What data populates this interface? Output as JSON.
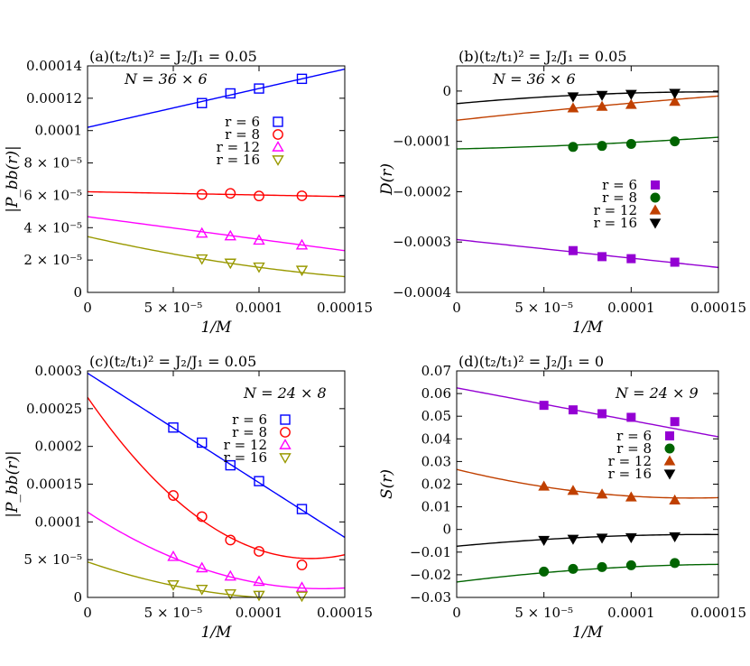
{
  "figure": {
    "panels": [
      {
        "id": "a",
        "title": "(a)(t₂/t₁)² = J₂/J₁ = 0.05",
        "n_label": "N = 36 × 6"
      },
      {
        "id": "b",
        "title": "(b)(t₂/t₁)² = J₂/J₁ = 0.05",
        "n_label": "N = 36 × 6"
      },
      {
        "id": "c",
        "title": "(c)(t₂/t₁)² = J₂/J₁ = 0.05",
        "n_label": "N = 24 × 8"
      },
      {
        "id": "d",
        "title": "(d)(t₂/t₁)² = J₂/J₁ = 0",
        "n_label": "N = 24 × 9"
      }
    ]
  },
  "chart_data": [
    {
      "type": "scatter",
      "panel": "a",
      "title": "(a)(t₂/t₁)² = J₂/J₁ = 0.05",
      "annotation": "N = 36 × 6",
      "xlabel": "1/M",
      "ylabel": "|P_bb(r)|",
      "xlim": [
        0,
        0.00015
      ],
      "ylim": [
        0,
        0.00014
      ],
      "xticks": [
        {
          "v": 0,
          "label": "0"
        },
        {
          "v": 5e-05,
          "label": "5 × 10⁻⁵"
        },
        {
          "v": 0.0001,
          "label": "0.0001"
        },
        {
          "v": 0.00015,
          "label": "0.00015"
        }
      ],
      "yticks": [
        {
          "v": 0,
          "label": "0"
        },
        {
          "v": 2e-05,
          "label": "2 × 10⁻⁵"
        },
        {
          "v": 4e-05,
          "label": "4 × 10⁻⁵"
        },
        {
          "v": 6e-05,
          "label": "6 × 10⁻⁵"
        },
        {
          "v": 8e-05,
          "label": "8 × 10⁻⁵"
        },
        {
          "v": 0.0001,
          "label": "0.0001"
        },
        {
          "v": 0.00012,
          "label": "0.00012"
        },
        {
          "v": 0.00014,
          "label": "0.00014"
        }
      ],
      "legend_position": "top-right",
      "series": [
        {
          "name": "r = 6",
          "color": "#0000ff",
          "marker": "square-open",
          "x": [
            6.67e-05,
            8.33e-05,
            0.0001,
            0.000125
          ],
          "y": [
            0.000117,
            0.000123,
            0.000126,
            0.000132
          ],
          "fit": [
            0.000102,
            0.24,
            0
          ]
        },
        {
          "name": "r = 8",
          "color": "#ff0000",
          "marker": "circle-open",
          "x": [
            6.67e-05,
            8.33e-05,
            0.0001,
            0.000125
          ],
          "y": [
            6.05e-05,
            6.12e-05,
            5.96e-05,
            5.97e-05
          ],
          "fit": [
            6.22e-05,
            -0.02,
            0
          ]
        },
        {
          "name": "r = 12",
          "color": "#ff00ff",
          "marker": "triangle-up-open",
          "x": [
            6.67e-05,
            8.33e-05,
            0.0001,
            0.000125
          ],
          "y": [
            3.65e-05,
            3.48e-05,
            3.22e-05,
            2.92e-05
          ],
          "fit": [
            4.68e-05,
            -0.14,
            0
          ]
        },
        {
          "name": "r = 16",
          "color": "#999900",
          "marker": "triangle-down-open",
          "x": [
            6.67e-05,
            8.33e-05,
            0.0001,
            0.000125
          ],
          "y": [
            2.08e-05,
            1.82e-05,
            1.58e-05,
            1.38e-05
          ],
          "fit": [
            3.45e-05,
            -0.24,
            500
          ]
        }
      ]
    },
    {
      "type": "scatter",
      "panel": "b",
      "title": "(b)(t₂/t₁)² = J₂/J₁ = 0.05",
      "annotation": "N = 36 × 6",
      "xlabel": "1/M",
      "ylabel": "D(r)",
      "xlim": [
        0,
        0.00015
      ],
      "ylim": [
        -0.0004,
        5e-05
      ],
      "xticks": [
        {
          "v": 0,
          "label": "0"
        },
        {
          "v": 5e-05,
          "label": "5 × 10⁻⁵"
        },
        {
          "v": 0.0001,
          "label": "0.0001"
        },
        {
          "v": 0.00015,
          "label": "0.00015"
        }
      ],
      "yticks": [
        {
          "v": 0,
          "label": "0"
        },
        {
          "v": -0.0001,
          "label": "−0.0001"
        },
        {
          "v": -0.0002,
          "label": "−0.0002"
        },
        {
          "v": -0.0003,
          "label": "−0.0003"
        },
        {
          "v": -0.0004,
          "label": "−0.0004"
        }
      ],
      "legend_position": "center-right",
      "series": [
        {
          "name": "r = 6",
          "color": "#9400d3",
          "marker": "square-filled",
          "x": [
            6.67e-05,
            8.33e-05,
            0.0001,
            0.000125
          ],
          "y": [
            -0.000317,
            -0.000329,
            -0.000333,
            -0.00034
          ],
          "fit": [
            -0.000295,
            -0.37,
            0
          ]
        },
        {
          "name": "r = 8",
          "color": "#006400",
          "marker": "circle-filled",
          "x": [
            6.67e-05,
            8.33e-05,
            0.0001,
            0.000125
          ],
          "y": [
            -0.000111,
            -0.000109,
            -0.000105,
            -0.0001
          ],
          "fit": [
            -0.000115,
            0.08,
            500
          ]
        },
        {
          "name": "r = 12",
          "color": "#c04000",
          "marker": "triangle-up-filled",
          "x": [
            6.67e-05,
            8.33e-05,
            0.0001,
            0.000125
          ],
          "y": [
            -3.4e-05,
            -3.1e-05,
            -2.7e-05,
            -2.1e-05
          ],
          "fit": [
            -5.8e-05,
            0.38,
            -400
          ]
        },
        {
          "name": "r = 16",
          "color": "#000000",
          "marker": "triangle-down-filled",
          "x": [
            6.67e-05,
            8.33e-05,
            0.0001,
            0.000125
          ],
          "y": [
            -1.1e-05,
            -8e-06,
            -6e-06,
            -4e-06
          ],
          "fit": [
            -2.5e-05,
            0.32,
            -1100
          ]
        }
      ]
    },
    {
      "type": "scatter",
      "panel": "c",
      "title": "(c)(t₂/t₁)² = J₂/J₁ = 0.05",
      "annotation": "N = 24 × 8",
      "xlabel": "1/M",
      "ylabel": "|P_bb(r)|",
      "xlim": [
        0,
        0.00015
      ],
      "ylim": [
        0,
        0.0003
      ],
      "xticks": [
        {
          "v": 0,
          "label": "0"
        },
        {
          "v": 5e-05,
          "label": "5 × 10⁻⁵"
        },
        {
          "v": 0.0001,
          "label": "0.0001"
        },
        {
          "v": 0.00015,
          "label": "0.00015"
        }
      ],
      "yticks": [
        {
          "v": 0,
          "label": "0"
        },
        {
          "v": 5e-05,
          "label": "5 × 10⁻⁵"
        },
        {
          "v": 0.0001,
          "label": "0.0001"
        },
        {
          "v": 0.00015,
          "label": "0.00015"
        },
        {
          "v": 0.0002,
          "label": "0.0002"
        },
        {
          "v": 0.00025,
          "label": "0.00025"
        },
        {
          "v": 0.0003,
          "label": "0.0003"
        }
      ],
      "legend_position": "top-right",
      "series": [
        {
          "name": "r = 6",
          "color": "#0000ff",
          "marker": "square-open",
          "x": [
            5e-05,
            6.67e-05,
            8.33e-05,
            0.0001,
            0.000125
          ],
          "y": [
            0.000225,
            0.000205,
            0.000175,
            0.000154,
            0.000117
          ],
          "fit": [
            0.000297,
            -1.45,
            0
          ]
        },
        {
          "name": "r = 8",
          "color": "#ff0000",
          "marker": "circle-open",
          "x": [
            5e-05,
            6.67e-05,
            8.33e-05,
            0.0001,
            0.000125
          ],
          "y": [
            0.000135,
            0.000107,
            7.6e-05,
            6.1e-05,
            4.3e-05
          ],
          "fit": [
            0.000265,
            -3.28,
            12600
          ]
        },
        {
          "name": "r = 12",
          "color": "#ff00ff",
          "marker": "triangle-up-open",
          "x": [
            5e-05,
            6.67e-05,
            8.33e-05,
            0.0001,
            0.000125
          ],
          "y": [
            5.4e-05,
            3.9e-05,
            2.8e-05,
            2.1e-05,
            1.3e-05
          ],
          "fit": [
            0.000113,
            -1.48,
            5400
          ]
        },
        {
          "name": "r = 16",
          "color": "#999900",
          "marker": "triangle-down-open",
          "x": [
            5e-05,
            6.67e-05,
            8.33e-05,
            0.0001,
            0.000125
          ],
          "y": [
            1.7e-05,
            1.1e-05,
            5e-06,
            3e-06,
            2e-06
          ],
          "fit": [
            4.7e-05,
            -0.78,
            3100
          ]
        }
      ]
    },
    {
      "type": "scatter",
      "panel": "d",
      "title": "(d)(t₂/t₁)² = J₂/J₁ = 0",
      "annotation": "N = 24 × 9",
      "xlabel": "1/M",
      "ylabel": "S(r)",
      "xlim": [
        0,
        0.00015
      ],
      "ylim": [
        -0.03,
        0.07
      ],
      "xticks": [
        {
          "v": 0,
          "label": "0"
        },
        {
          "v": 5e-05,
          "label": "5 × 10⁻⁵"
        },
        {
          "v": 0.0001,
          "label": "0.0001"
        },
        {
          "v": 0.00015,
          "label": "0.00015"
        }
      ],
      "yticks": [
        {
          "v": -0.03,
          "label": "−0.03"
        },
        {
          "v": -0.02,
          "label": "−0.02"
        },
        {
          "v": -0.01,
          "label": "−0.01"
        },
        {
          "v": 0,
          "label": "0"
        },
        {
          "v": 0.01,
          "label": "0.01"
        },
        {
          "v": 0.02,
          "label": "0.02"
        },
        {
          "v": 0.03,
          "label": "0.03"
        },
        {
          "v": 0.04,
          "label": "0.04"
        },
        {
          "v": 0.05,
          "label": "0.05"
        },
        {
          "v": 0.06,
          "label": "0.06"
        },
        {
          "v": 0.07,
          "label": "0.07"
        }
      ],
      "legend_position": "top-right",
      "series": [
        {
          "name": "r = 6",
          "color": "#9400d3",
          "marker": "square-filled",
          "x": [
            5e-05,
            6.67e-05,
            8.33e-05,
            0.0001,
            0.000125
          ],
          "y": [
            0.0548,
            0.0528,
            0.0511,
            0.0495,
            0.0476
          ],
          "fit": [
            0.0625,
            -144,
            0
          ]
        },
        {
          "name": "r = 8",
          "color": "#006400",
          "marker": "circle-filled",
          "x": [
            5e-05,
            6.67e-05,
            8.33e-05,
            0.0001,
            0.000125
          ],
          "y": [
            -0.0186,
            -0.0174,
            -0.0166,
            -0.0158,
            -0.0148
          ],
          "fit": [
            -0.0232,
            97,
            -300000
          ]
        },
        {
          "name": "r = 12",
          "color": "#c04000",
          "marker": "triangle-up-filled",
          "x": [
            5e-05,
            6.67e-05,
            8.33e-05,
            0.0001,
            0.000125
          ],
          "y": [
            0.019,
            0.0171,
            0.0155,
            0.0142,
            0.0129
          ],
          "fit": [
            0.0265,
            -188,
            700000
          ]
        },
        {
          "name": "r = 16",
          "color": "#000000",
          "marker": "triangle-down-filled",
          "x": [
            5e-05,
            6.67e-05,
            8.33e-05,
            0.0001,
            0.000125
          ],
          "y": [
            -0.0047,
            -0.0042,
            -0.0037,
            -0.0035,
            -0.0031
          ],
          "fit": [
            -0.0074,
            72,
            -250000
          ]
        }
      ]
    }
  ]
}
